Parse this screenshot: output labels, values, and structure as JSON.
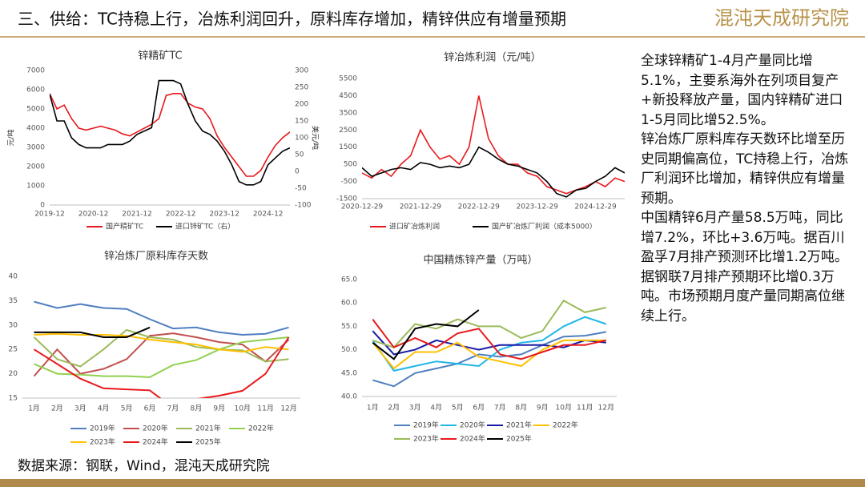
{
  "header": {
    "title": "三、供给：TC持稳上行，冶炼利润回升，原料库存增加，精锌供应有增量预期",
    "logo": "混沌天成研究院"
  },
  "notes": [
    "全球锌精矿1-4月产量同比增5.1%，主要系海外在列项目复产+新投释放产量，国内锌精矿进口1-5月同比增52.5%。",
    "锌冶炼厂原料库存天数环比增至历史同期偏高位，TC持稳上行，冶炼厂利润环比增加，精锌供应有增量预期。",
    "中国精锌6月产量58.5万吨，同比增7.2%，环比+3.6万吨。据百川盈孚7月排产预测环比增1.2万吨。据钢联7月排产预期环比增0.3万吨。市场预期月度产量同期高位继续上行。"
  ],
  "source": "数据来源：钢联，Wind，混沌天成研究院",
  "chart_data": [
    {
      "type": "line",
      "title": "锌精矿TC",
      "y_label": "元/吨",
      "y2_label": "美元/吨",
      "categories": [
        "2019-12",
        null,
        null,
        null,
        null,
        null,
        "2020-12",
        null,
        null,
        null,
        null,
        null,
        "2021-12",
        null,
        null,
        null,
        null,
        null,
        "2022-12",
        null,
        null,
        null,
        null,
        null,
        "2023-12",
        null,
        null,
        null,
        null,
        null,
        "2024-12",
        null,
        null,
        null
      ],
      "ylim": [
        0,
        7000
      ],
      "yticks": [
        0,
        1000,
        2000,
        3000,
        4000,
        5000,
        6000,
        7000
      ],
      "y2lim": [
        -100,
        300
      ],
      "y2ticks": [
        -100,
        -50,
        0,
        50,
        100,
        150,
        200,
        250,
        300
      ],
      "series": [
        {
          "name": "国产精矿TC",
          "color": "#e8191c",
          "values": [
            5800,
            5000,
            5200,
            4500,
            4000,
            3900,
            4000,
            4100,
            4000,
            3900,
            3700,
            3600,
            3800,
            4000,
            4200,
            4500,
            5700,
            5800,
            5800,
            5300,
            5100,
            5000,
            4500,
            3600,
            3000,
            2500,
            2000,
            1500,
            1500,
            1800,
            2500,
            3100,
            3500,
            3800
          ]
        },
        {
          "name": "进口锌矿TC（右）",
          "color": "#000000",
          "axis": "y2",
          "values": [
            230,
            150,
            150,
            100,
            80,
            70,
            70,
            70,
            80,
            80,
            80,
            90,
            110,
            120,
            130,
            270,
            270,
            270,
            260,
            200,
            150,
            120,
            110,
            90,
            60,
            20,
            -30,
            -40,
            -40,
            -30,
            20,
            40,
            60,
            70
          ]
        }
      ]
    },
    {
      "type": "line",
      "title": "锌冶炼利润（元/吨）",
      "categories": [
        "2020-12-29",
        null,
        null,
        null,
        null,
        null,
        "2021-12-29",
        null,
        null,
        null,
        null,
        null,
        "2022-12-29",
        null,
        null,
        null,
        null,
        null,
        "2023-12-29",
        null,
        null,
        null,
        null,
        null,
        "2024-12-29",
        null,
        null,
        null
      ],
      "ylim": [
        -1500,
        5500
      ],
      "yticks": [
        -1500,
        -500,
        500,
        1500,
        2500,
        3500,
        4500,
        5500
      ],
      "series": [
        {
          "name": "进口矿冶炼利润",
          "color": "#e8191c",
          "values": [
            0,
            -300,
            200,
            -200,
            500,
            1000,
            2500,
            1500,
            800,
            1000,
            500,
            1500,
            4500,
            2000,
            1000,
            500,
            500,
            0,
            -200,
            -800,
            -1000,
            -1200,
            -1000,
            -800,
            -500,
            -800,
            -300,
            -500
          ]
        },
        {
          "name": "国产矿冶炼厂利润（成本5000）",
          "color": "#000000",
          "values": [
            300,
            -200,
            0,
            200,
            300,
            200,
            600,
            500,
            300,
            400,
            300,
            500,
            1500,
            1200,
            800,
            500,
            400,
            200,
            0,
            -500,
            -1200,
            -1400,
            -1000,
            -900,
            -500,
            -200,
            300,
            0
          ]
        }
      ]
    },
    {
      "type": "line",
      "title": "锌冶炼厂原料库存天数",
      "categories": [
        "1月",
        "2月",
        "3月",
        "4月",
        "5月",
        "6月",
        "7月",
        "8月",
        "9月",
        "10月",
        "11月",
        "12月"
      ],
      "ylim": [
        15,
        40
      ],
      "yticks": [
        15,
        20,
        25,
        30,
        35,
        40
      ],
      "series": [
        {
          "name": "2019年",
          "color": "#4f7fbf",
          "values": [
            34.8,
            33.5,
            34.3,
            33.5,
            33.3,
            31.2,
            29.3,
            29.5,
            28.5,
            28.0,
            28.2,
            29.5
          ]
        },
        {
          "name": "2020年",
          "color": "#c0504d",
          "values": [
            19.5,
            25,
            20,
            21,
            23,
            27.8,
            28.3,
            27.5,
            26.5,
            26,
            22.5,
            27
          ]
        },
        {
          "name": "2021年",
          "color": "#9bbb59",
          "values": [
            27.5,
            23,
            21.5,
            25,
            29,
            27.5,
            27,
            25.5,
            25,
            24.8,
            22.5,
            23
          ]
        },
        {
          "name": "2022年",
          "color": "#92d050",
          "values": [
            22,
            20,
            19.8,
            19.5,
            19.5,
            19.3,
            21.8,
            22.8,
            25,
            26.5,
            27,
            27.5
          ]
        },
        {
          "name": "2023年",
          "color": "#ffc000",
          "values": [
            28,
            28.2,
            28,
            28,
            27.8,
            27,
            26.5,
            26,
            25,
            24.5,
            25.5,
            25
          ]
        },
        {
          "name": "2024年",
          "color": "#e8191c",
          "values": [
            25,
            22,
            19,
            17,
            16.8,
            16.6,
            13,
            14.8,
            15.5,
            16.5,
            20,
            27.5
          ]
        },
        {
          "name": "2025年",
          "color": "#000000",
          "values": [
            28.5,
            28.5,
            28.5,
            27.5,
            27.5,
            29.5,
            null,
            null,
            null,
            null,
            null,
            null
          ]
        }
      ]
    },
    {
      "type": "line",
      "title": "中国精炼锌产量（万吨）",
      "categories": [
        "1月",
        "2月",
        "3月",
        "4月",
        "5月",
        "6月",
        "7月",
        "8月",
        "9月",
        "10月",
        "11月",
        "12月"
      ],
      "ylim": [
        40,
        65
      ],
      "yticks": [
        {
          "value": 40,
          "label": "40.0"
        },
        {
          "value": 45,
          "label": "45.0"
        },
        {
          "value": 50,
          "label": "50.0"
        },
        {
          "value": 55,
          "label": "55.0"
        },
        {
          "value": 60,
          "label": "60.0"
        },
        {
          "value": 65,
          "label": "65.0"
        }
      ],
      "series": [
        {
          "name": "2019年",
          "color": "#4f7fbf",
          "values": [
            43.5,
            42.2,
            45,
            46,
            47,
            49,
            48.5,
            49,
            51,
            52.8,
            53,
            53.8
          ]
        },
        {
          "name": "2020年",
          "color": "#1fb6e8",
          "values": [
            52,
            45.5,
            46.5,
            47.5,
            47,
            46.5,
            50,
            51.5,
            52,
            55,
            57,
            55.5
          ]
        },
        {
          "name": "2021年",
          "color": "#1a1aa6",
          "values": [
            54,
            49,
            50,
            52,
            51,
            50,
            51,
            51,
            51,
            50.5,
            52,
            51.5
          ]
        },
        {
          "name": "2022年",
          "color": "#ffc000",
          "values": [
            51.5,
            46,
            49.5,
            49.5,
            51.5,
            48.5,
            47.5,
            46.5,
            50,
            52,
            52,
            52
          ]
        },
        {
          "name": "2023年",
          "color": "#9bbb59",
          "values": [
            52,
            50.5,
            55.5,
            54.5,
            56.5,
            55,
            55,
            52.5,
            54,
            60.5,
            58,
            59
          ]
        },
        {
          "name": "2024年",
          "color": "#e8191c",
          "values": [
            56.5,
            50.5,
            52.5,
            50.5,
            53.5,
            54.5,
            49,
            48,
            49.5,
            51,
            51,
            52
          ]
        },
        {
          "name": "2025年",
          "color": "#000000",
          "values": [
            51.5,
            48,
            54.5,
            55.5,
            55,
            58.5,
            null,
            null,
            null,
            null,
            null,
            null
          ]
        }
      ]
    }
  ]
}
